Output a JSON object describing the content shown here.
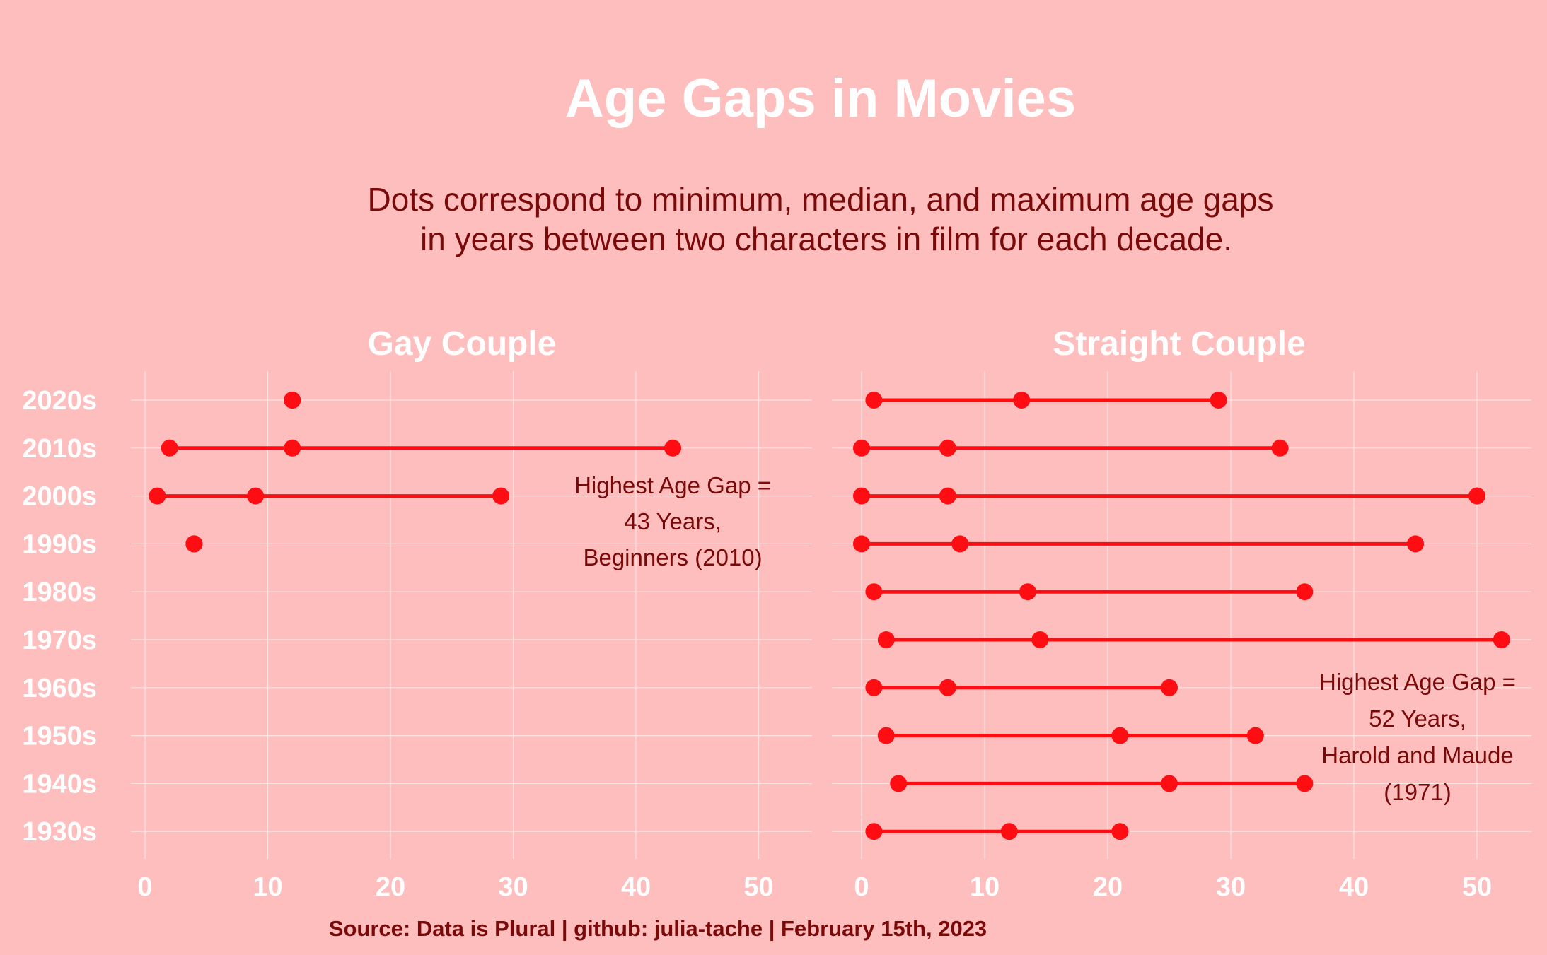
{
  "title": "Age Gaps in Movies",
  "subtitle_lines": [
    "Dots correspond to minimum, median, and maximum age gaps",
    "in years between two characters in film for each decade."
  ],
  "caption": "Source: Data is Plural | github: julia-tache | February 15th, 2023",
  "colors": {
    "background": "#FFBEBE",
    "accent": "#FF0D12",
    "text_dark": "#7A0A0A",
    "text_light": "#FFFFFF"
  },
  "chart_data": [
    {
      "type": "dumbbell",
      "title": "Gay Couple",
      "xlim": [
        0,
        55
      ],
      "xticks": [
        0,
        10,
        20,
        30,
        40,
        50
      ],
      "grid": true,
      "categories": [
        "2020s",
        "2010s",
        "2000s",
        "1990s",
        "1980s",
        "1970s",
        "1960s",
        "1950s",
        "1940s",
        "1930s"
      ],
      "series": [
        {
          "decade": "2020s",
          "min": 12,
          "median": 12,
          "max": 12
        },
        {
          "decade": "2010s",
          "min": 2,
          "median": 12,
          "max": 43
        },
        {
          "decade": "2000s",
          "min": 1,
          "median": 9,
          "max": 29
        },
        {
          "decade": "1990s",
          "min": 4,
          "median": 4,
          "max": 4
        }
      ],
      "annotation": {
        "lines": [
          "Highest Age Gap =",
          "43 Years,",
          "Beginners (2010)"
        ],
        "x": 43,
        "row": "2000s"
      }
    },
    {
      "type": "dumbbell",
      "title": "Straight Couple",
      "xlim": [
        0,
        55
      ],
      "xticks": [
        0,
        10,
        20,
        30,
        40,
        50
      ],
      "grid": true,
      "categories": [
        "2020s",
        "2010s",
        "2000s",
        "1990s",
        "1980s",
        "1970s",
        "1960s",
        "1950s",
        "1940s",
        "1930s"
      ],
      "series": [
        {
          "decade": "2020s",
          "min": 1,
          "median": 13,
          "max": 29
        },
        {
          "decade": "2010s",
          "min": 0,
          "median": 7,
          "max": 34
        },
        {
          "decade": "2000s",
          "min": 0,
          "median": 7,
          "max": 50
        },
        {
          "decade": "1990s",
          "min": 0,
          "median": 8,
          "max": 45
        },
        {
          "decade": "1980s",
          "min": 1,
          "median": 13.5,
          "max": 36
        },
        {
          "decade": "1970s",
          "min": 2,
          "median": 14.5,
          "max": 52
        },
        {
          "decade": "1960s",
          "min": 1,
          "median": 7,
          "max": 25
        },
        {
          "decade": "1950s",
          "min": 2,
          "median": 21,
          "max": 32
        },
        {
          "decade": "1940s",
          "min": 3,
          "median": 25,
          "max": 36
        },
        {
          "decade": "1930s",
          "min": 1,
          "median": 12,
          "max": 21
        }
      ],
      "annotation": {
        "lines": [
          "Highest Age Gap =",
          "52 Years,",
          "Harold and Maude",
          "(1971)"
        ],
        "x": 45,
        "row": "1950s"
      }
    }
  ]
}
